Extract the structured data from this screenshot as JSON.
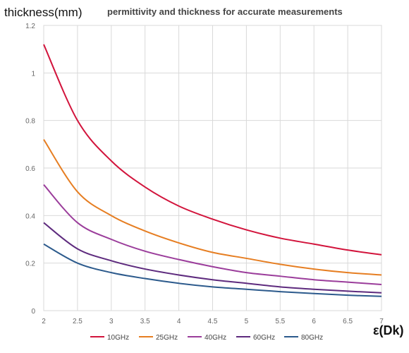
{
  "chart_data": {
    "type": "line",
    "title": "permittivity and thickness for accurate measurements",
    "ylabel": "thickness(mm)",
    "xlabel": "ε(Dk)",
    "xlim": [
      2,
      7
    ],
    "ylim": [
      0,
      1.2
    ],
    "x_ticks": [
      "2",
      "2.5",
      "3",
      "3.5",
      "4",
      "4.5",
      "5",
      "5.5",
      "6",
      "6.5",
      "7"
    ],
    "y_ticks": [
      "0",
      "0.2",
      "0.4",
      "0.6",
      "0.8",
      "1",
      "1.2"
    ],
    "grid": true,
    "legend_position": "bottom",
    "x": [
      2,
      2.5,
      3,
      3.5,
      4,
      4.5,
      5,
      5.5,
      6,
      6.5,
      7
    ],
    "series": [
      {
        "name": "10GHz",
        "color": "#d2143c",
        "values": [
          1.12,
          0.8,
          0.63,
          0.52,
          0.44,
          0.385,
          0.34,
          0.305,
          0.28,
          0.255,
          0.235
        ]
      },
      {
        "name": "25GHz",
        "color": "#e67e22",
        "values": [
          0.72,
          0.5,
          0.4,
          0.335,
          0.285,
          0.245,
          0.22,
          0.195,
          0.175,
          0.16,
          0.15
        ]
      },
      {
        "name": "40GHz",
        "color": "#9b3d9b",
        "values": [
          0.53,
          0.37,
          0.3,
          0.25,
          0.215,
          0.185,
          0.16,
          0.145,
          0.13,
          0.12,
          0.11
        ]
      },
      {
        "name": "60GHz",
        "color": "#5e2b7e",
        "values": [
          0.37,
          0.26,
          0.21,
          0.175,
          0.15,
          0.13,
          0.115,
          0.1,
          0.09,
          0.082,
          0.075
        ]
      },
      {
        "name": "80GHz",
        "color": "#2c5a8c",
        "values": [
          0.28,
          0.2,
          0.16,
          0.135,
          0.115,
          0.1,
          0.09,
          0.08,
          0.072,
          0.065,
          0.06
        ]
      }
    ]
  }
}
